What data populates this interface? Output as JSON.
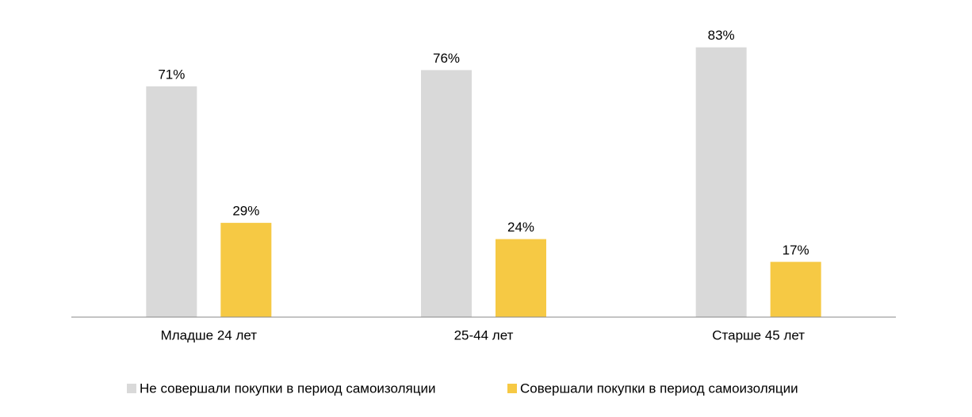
{
  "chart_data": {
    "type": "bar",
    "categories": [
      "Младше 24 лет",
      "25-44 лет",
      "Старше 45 лет"
    ],
    "series": [
      {
        "name": "Не совершали покупки в период самоизоляции",
        "color": "#d9d9d9",
        "values": [
          71,
          76,
          83
        ],
        "value_labels": [
          "71%",
          "76%",
          "83%"
        ]
      },
      {
        "name": "Совершали покупки в период самоизоляции",
        "color": "#f6c944",
        "values": [
          29,
          24,
          17
        ],
        "value_labels": [
          "29%",
          "24%",
          "17%"
        ]
      }
    ]
  }
}
